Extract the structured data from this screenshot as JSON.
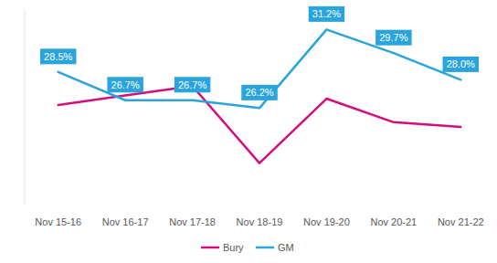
{
  "chart_data": {
    "type": "line",
    "categories": [
      "Nov 15-16",
      "Nov 16-17",
      "Nov 17-18",
      "Nov 18-19",
      "Nov 19-20",
      "Nov 20-21",
      "Nov 21-22"
    ],
    "series": [
      {
        "name": "Bury",
        "color": "#d40d7c",
        "values": [
          26.4,
          27.0,
          27.6,
          22.7,
          26.8,
          25.3,
          25.0
        ]
      },
      {
        "name": "GM",
        "color": "#2aa4dc",
        "values": [
          28.5,
          26.7,
          26.7,
          26.2,
          31.2,
          29.7,
          28.0
        ],
        "value_labels": [
          "28.5%",
          "26.7%",
          "26.7%",
          "26.2%",
          "31.2%",
          "29.7%",
          "28.0%"
        ]
      }
    ],
    "ylim": [
      20,
      32.5
    ],
    "yticks": [],
    "tick_labels": "x",
    "grid": false,
    "legend": "bottom",
    "data_labels": true
  }
}
